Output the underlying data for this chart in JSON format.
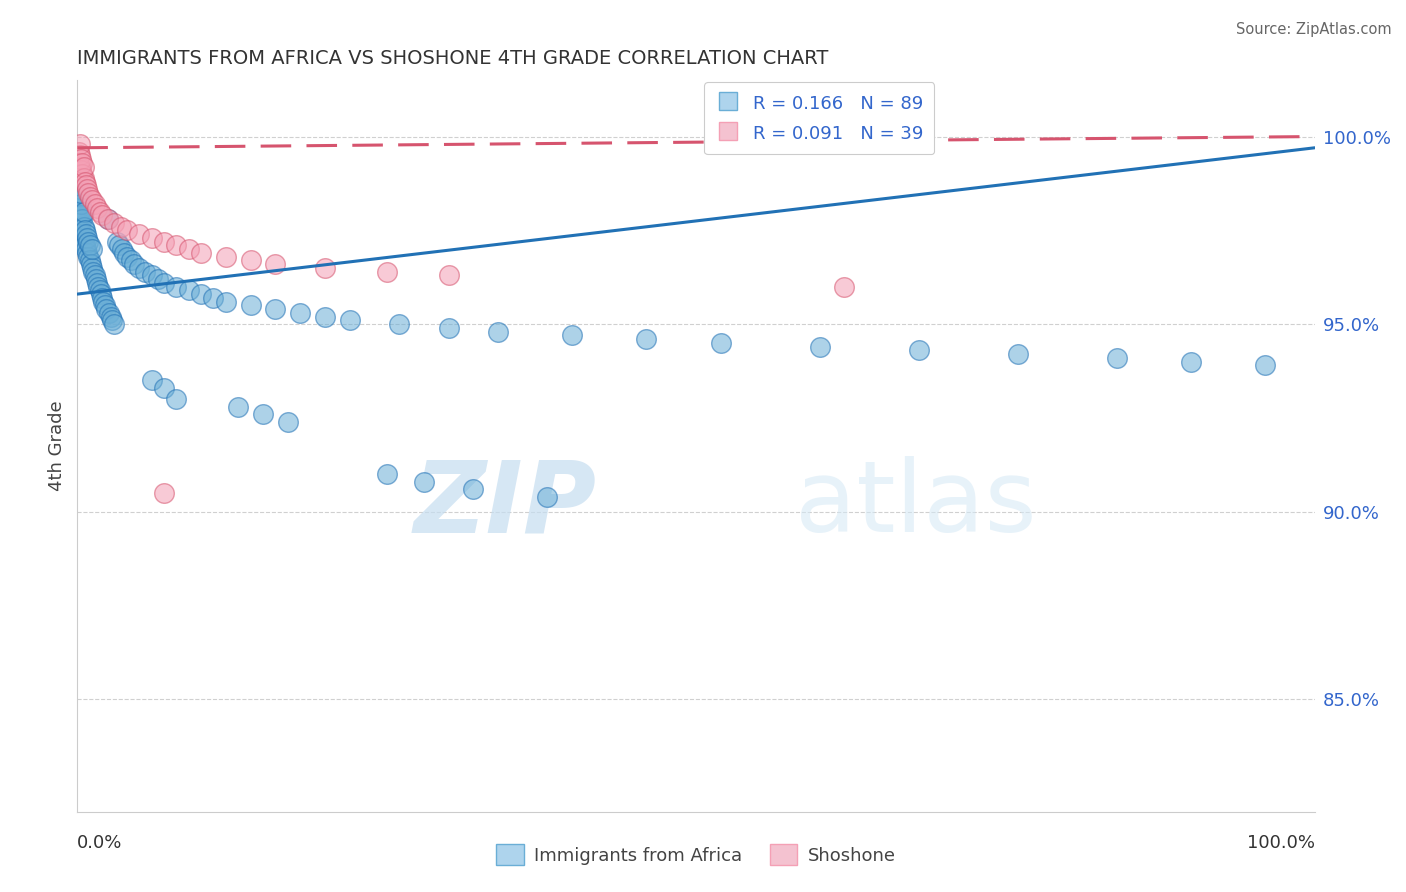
{
  "title": "IMMIGRANTS FROM AFRICA VS SHOSHONE 4TH GRADE CORRELATION CHART",
  "source": "Source: ZipAtlas.com",
  "ylabel": "4th Grade",
  "blue_R": 0.166,
  "blue_N": 89,
  "pink_R": 0.091,
  "pink_N": 39,
  "blue_color": "#6aaed6",
  "pink_color": "#f4a0b5",
  "blue_line_color": "#2171b5",
  "pink_line_color": "#d6546e",
  "watermark_zip": "ZIP",
  "watermark_atlas": "atlas",
  "ytick_labels": [
    "85.0%",
    "90.0%",
    "95.0%",
    "100.0%"
  ],
  "ytick_values": [
    0.85,
    0.9,
    0.95,
    1.0
  ],
  "xlim": [
    0.0,
    1.0
  ],
  "ylim": [
    0.82,
    1.015
  ],
  "blue_line_y_start": 0.958,
  "blue_line_y_end": 0.997,
  "pink_line_y_start": 0.997,
  "pink_line_y_end": 1.0,
  "grid_color": "#d0d0d0",
  "background_color": "#ffffff",
  "blue_scatter_x": [
    0.001,
    0.001,
    0.001,
    0.002,
    0.002,
    0.002,
    0.002,
    0.003,
    0.003,
    0.003,
    0.003,
    0.004,
    0.004,
    0.005,
    0.005,
    0.005,
    0.006,
    0.006,
    0.007,
    0.007,
    0.008,
    0.008,
    0.009,
    0.009,
    0.01,
    0.01,
    0.011,
    0.012,
    0.012,
    0.013,
    0.014,
    0.015,
    0.016,
    0.017,
    0.018,
    0.019,
    0.02,
    0.021,
    0.022,
    0.023,
    0.025,
    0.026,
    0.027,
    0.028,
    0.03,
    0.032,
    0.034,
    0.036,
    0.038,
    0.04,
    0.043,
    0.046,
    0.05,
    0.055,
    0.06,
    0.065,
    0.07,
    0.08,
    0.09,
    0.1,
    0.11,
    0.12,
    0.14,
    0.16,
    0.18,
    0.2,
    0.22,
    0.26,
    0.3,
    0.34,
    0.4,
    0.46,
    0.52,
    0.6,
    0.68,
    0.76,
    0.84,
    0.9,
    0.96,
    0.06,
    0.07,
    0.08,
    0.13,
    0.15,
    0.17,
    0.25,
    0.28,
    0.32,
    0.38
  ],
  "blue_scatter_y": [
    0.978,
    0.981,
    0.984,
    0.977,
    0.98,
    0.983,
    0.986,
    0.975,
    0.979,
    0.982,
    0.985,
    0.974,
    0.978,
    0.972,
    0.976,
    0.98,
    0.971,
    0.975,
    0.97,
    0.974,
    0.969,
    0.973,
    0.968,
    0.972,
    0.967,
    0.971,
    0.966,
    0.965,
    0.97,
    0.964,
    0.963,
    0.962,
    0.961,
    0.96,
    0.959,
    0.958,
    0.957,
    0.956,
    0.955,
    0.954,
    0.978,
    0.953,
    0.952,
    0.951,
    0.95,
    0.972,
    0.971,
    0.97,
    0.969,
    0.968,
    0.967,
    0.966,
    0.965,
    0.964,
    0.963,
    0.962,
    0.961,
    0.96,
    0.959,
    0.958,
    0.957,
    0.956,
    0.955,
    0.954,
    0.953,
    0.952,
    0.951,
    0.95,
    0.949,
    0.948,
    0.947,
    0.946,
    0.945,
    0.944,
    0.943,
    0.942,
    0.941,
    0.94,
    0.939,
    0.935,
    0.933,
    0.93,
    0.928,
    0.926,
    0.924,
    0.91,
    0.908,
    0.906,
    0.904
  ],
  "pink_scatter_x": [
    0.001,
    0.001,
    0.002,
    0.002,
    0.002,
    0.003,
    0.003,
    0.004,
    0.004,
    0.005,
    0.005,
    0.006,
    0.007,
    0.008,
    0.009,
    0.01,
    0.012,
    0.014,
    0.016,
    0.018,
    0.02,
    0.025,
    0.03,
    0.035,
    0.04,
    0.05,
    0.06,
    0.07,
    0.08,
    0.09,
    0.1,
    0.12,
    0.14,
    0.16,
    0.2,
    0.25,
    0.3,
    0.07,
    0.62
  ],
  "pink_scatter_y": [
    0.993,
    0.996,
    0.992,
    0.995,
    0.998,
    0.991,
    0.994,
    0.99,
    0.993,
    0.989,
    0.992,
    0.988,
    0.987,
    0.986,
    0.985,
    0.984,
    0.983,
    0.982,
    0.981,
    0.98,
    0.979,
    0.978,
    0.977,
    0.976,
    0.975,
    0.974,
    0.973,
    0.972,
    0.971,
    0.97,
    0.969,
    0.968,
    0.967,
    0.966,
    0.965,
    0.964,
    0.963,
    0.905,
    0.96
  ]
}
